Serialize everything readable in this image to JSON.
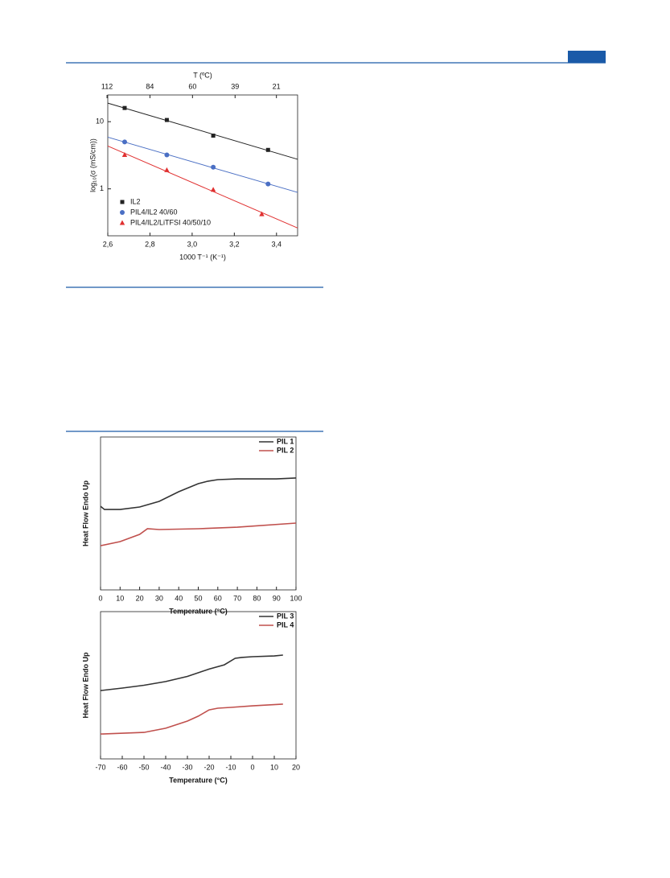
{
  "chart_data": [
    {
      "type": "scatter",
      "xlabel": "1000 T⁻¹ (K⁻¹)",
      "ylabel": "log₁₀(σ (mS/cm))",
      "x2label": "T (ºC)",
      "xlim": [
        2.6,
        3.5
      ],
      "xticks": [
        {
          "value": 2.6,
          "label": "2,6"
        },
        {
          "value": 2.8,
          "label": "2,8"
        },
        {
          "value": 3.0,
          "label": "3,0"
        },
        {
          "value": 3.2,
          "label": "3,2"
        },
        {
          "value": 3.4,
          "label": "3,4"
        }
      ],
      "x2ticks": [
        112,
        84,
        60,
        39,
        21
      ],
      "ylim": [
        0.2,
        25
      ],
      "yticks": [
        1,
        10
      ],
      "log_y": true,
      "fit": true,
      "legend": "lower left",
      "series": [
        {
          "name": "IL2",
          "color": "#222222",
          "marker": "square",
          "x": [
            2.68,
            2.88,
            3.1,
            3.36
          ],
          "values": [
            16,
            10.6,
            6.2,
            3.8
          ]
        },
        {
          "name": "PIL4/IL2 40/60",
          "color": "#4a6fc4",
          "marker": "circle",
          "x": [
            2.68,
            2.88,
            3.1,
            3.36
          ],
          "values": [
            5.0,
            3.2,
            2.1,
            1.18
          ]
        },
        {
          "name": "PIL4/IL2/LiTFSI 40/50/10",
          "color": "#e03030",
          "marker": "triangle",
          "x": [
            2.68,
            2.88,
            3.1,
            3.33
          ],
          "values": [
            3.2,
            1.9,
            0.97,
            0.42
          ]
        }
      ]
    },
    {
      "type": "line",
      "xlabel": "Temperature (°C)",
      "ylabel": "Heat Flow Endo Up",
      "xlim": [
        0,
        100
      ],
      "xticks": [
        0,
        10,
        20,
        30,
        40,
        50,
        60,
        70,
        80,
        90,
        100
      ],
      "ylim": [
        0,
        100
      ],
      "legend": "upper right",
      "series": [
        {
          "name": "PIL 1",
          "color": "#333333",
          "x": [
            0,
            2,
            10,
            20,
            30,
            40,
            50,
            55,
            60,
            70,
            80,
            90,
            100
          ],
          "values": [
            54.7,
            52.6,
            52.6,
            54.2,
            57.9,
            64.2,
            69.5,
            71.1,
            72.1,
            72.6,
            72.6,
            72.6,
            73.2
          ]
        },
        {
          "name": "PIL 2",
          "color": "#c0504d",
          "x": [
            0,
            10,
            20,
            24,
            30,
            50,
            70,
            100
          ],
          "values": [
            28.9,
            31.6,
            36.3,
            40,
            39.5,
            40,
            41,
            43.7
          ]
        }
      ]
    },
    {
      "type": "line",
      "xlabel": "Temperature (°C)",
      "ylabel": "Heat Flow Endo Up",
      "xlim": [
        -70,
        20
      ],
      "xticks": [
        -70,
        -60,
        -50,
        -40,
        -30,
        -20,
        -10,
        0,
        10,
        20
      ],
      "ylim": [
        0,
        100
      ],
      "legend": "upper right",
      "series": [
        {
          "name": "PIL 3",
          "color": "#333333",
          "x": [
            -70,
            -60,
            -50,
            -40,
            -30,
            -20,
            -13,
            -8,
            -5,
            0,
            10,
            14
          ],
          "values": [
            46.4,
            48.1,
            50,
            52.5,
            56,
            61,
            63.9,
            68.3,
            68.9,
            69.4,
            69.9,
            70.5
          ]
        },
        {
          "name": "PIL 4",
          "color": "#c0504d",
          "x": [
            -70,
            -50,
            -40,
            -30,
            -25,
            -20,
            -16,
            -10,
            0,
            14
          ],
          "values": [
            16.9,
            18,
            20.8,
            25.7,
            29,
            33.3,
            34.4,
            35,
            36,
            37.2
          ]
        }
      ]
    }
  ]
}
